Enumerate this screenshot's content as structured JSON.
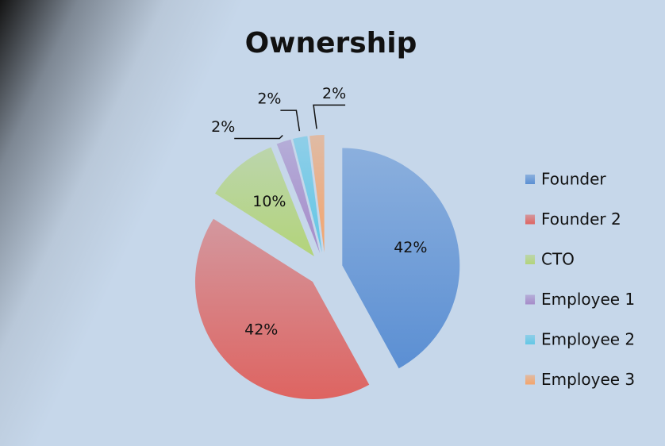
{
  "chart_data": {
    "type": "pie",
    "title": "Ownership",
    "categories": [
      "Founder",
      "Founder 2",
      "CTO",
      "Employee 1",
      "Employee 2",
      "Employee 3"
    ],
    "values": [
      42,
      42,
      10,
      2,
      2,
      2
    ],
    "value_labels": [
      "42%",
      "42%",
      "10%",
      "2%",
      "2%",
      "2%"
    ],
    "colors": [
      "#5b8fd3",
      "#de6461",
      "#b3d47a",
      "#a68bc9",
      "#62c7e6",
      "#f4a46c"
    ],
    "legend": "right"
  }
}
